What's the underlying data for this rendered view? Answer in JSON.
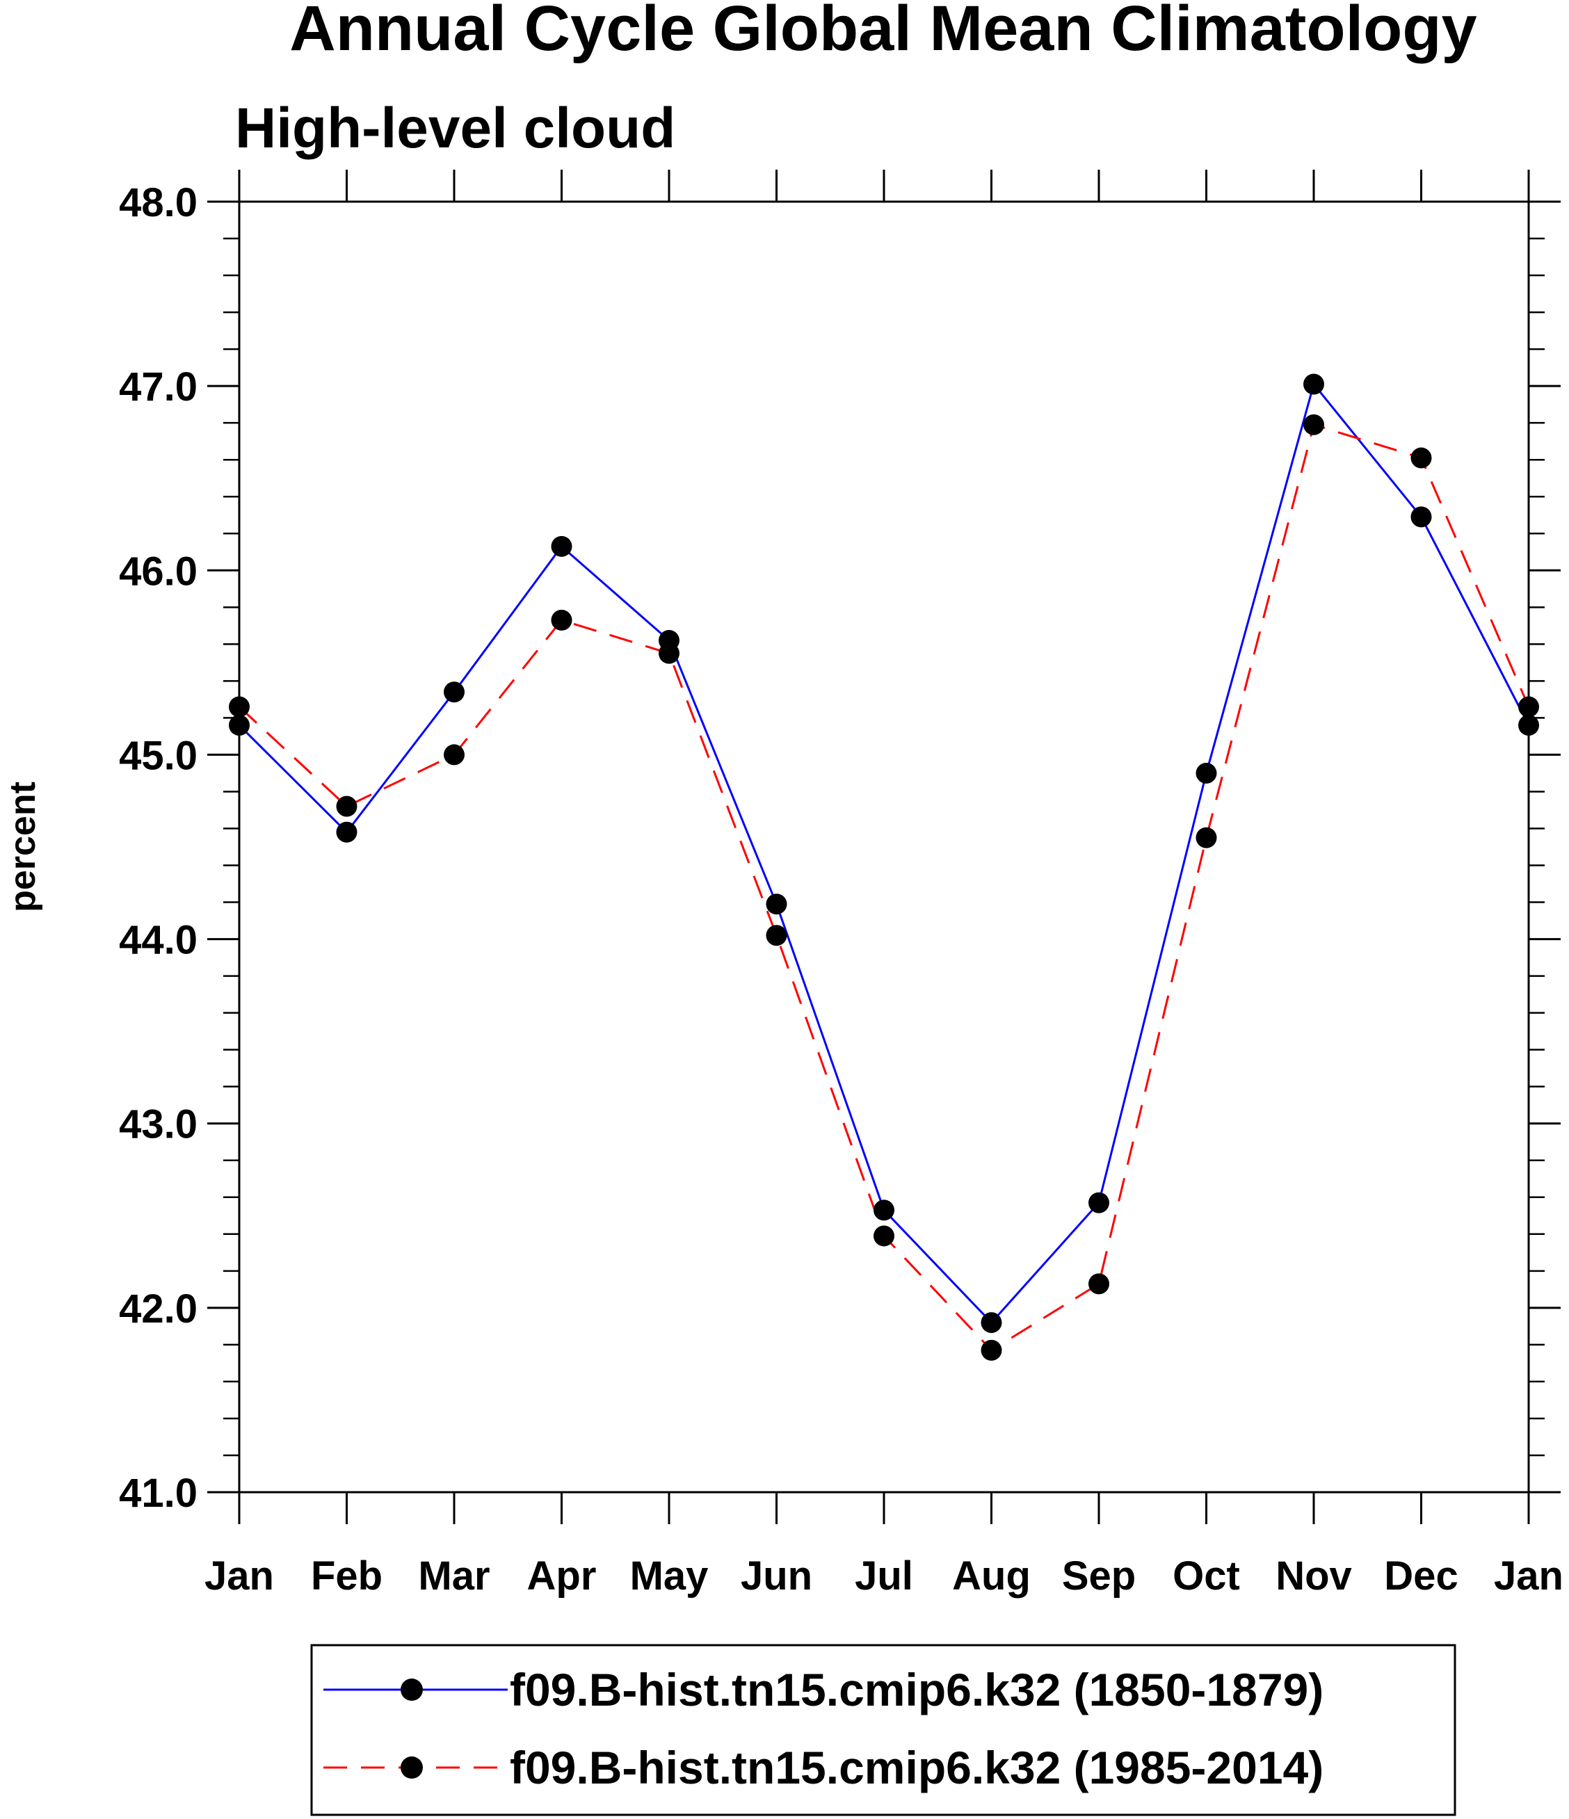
{
  "chart_data": {
    "type": "line",
    "title": "Annual Cycle Global Mean Climatology",
    "subtitle": "High-level cloud",
    "xlabel": "",
    "ylabel": "percent",
    "categories": [
      "Jan",
      "Feb",
      "Mar",
      "Apr",
      "May",
      "Jun",
      "Jul",
      "Aug",
      "Sep",
      "Oct",
      "Nov",
      "Dec",
      "Jan"
    ],
    "ylim": [
      41.0,
      48.0
    ],
    "yticks": [
      "41.0",
      "42.0",
      "43.0",
      "44.0",
      "45.0",
      "46.0",
      "47.0",
      "48.0"
    ],
    "grid": false,
    "legend_position": "bottom",
    "series": [
      {
        "name": "f09.B-hist.tn15.cmip6.k32 (1850-1879)",
        "color": "#0000ff",
        "dash": "solid",
        "marker": "filled-circle",
        "values": [
          45.16,
          44.58,
          45.34,
          46.13,
          45.62,
          44.19,
          42.53,
          41.92,
          42.57,
          44.9,
          47.01,
          46.29,
          45.16
        ]
      },
      {
        "name": "f09.B-hist.tn15.cmip6.k32 (1985-2014)",
        "color": "#ff0000",
        "dash": "dashed",
        "marker": "filled-circle",
        "values": [
          45.26,
          44.72,
          45.0,
          45.73,
          45.55,
          44.02,
          42.39,
          41.77,
          42.13,
          44.55,
          46.79,
          46.61,
          45.26
        ]
      }
    ]
  }
}
